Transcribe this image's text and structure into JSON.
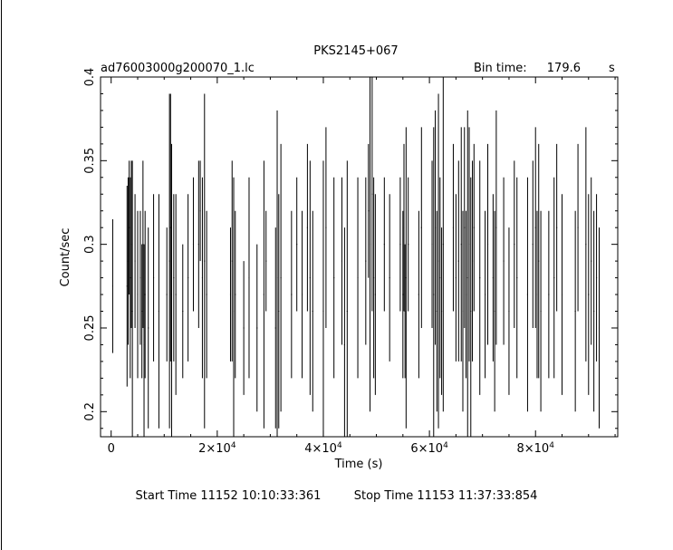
{
  "chart_data": {
    "type": "line",
    "title": "PKS2145+067",
    "subtitle_left": "ad76003000g200070_1.lc",
    "bin_time_label": "Bin time:",
    "bin_time_value": "179.6",
    "bin_time_unit": "s",
    "xlabel": "Time (s)",
    "ylabel": "Count/sec",
    "xlim": [
      -2000,
      95500
    ],
    "ylim": [
      0.185,
      0.4
    ],
    "x_ticks": [
      {
        "value": 0,
        "mantissa": "0",
        "exponent": ""
      },
      {
        "value": 20000,
        "mantissa": "2×10",
        "exponent": "4"
      },
      {
        "value": 40000,
        "mantissa": "4×10",
        "exponent": "4"
      },
      {
        "value": 60000,
        "mantissa": "6×10",
        "exponent": "4"
      },
      {
        "value": 80000,
        "mantissa": "8×10",
        "exponent": "4"
      }
    ],
    "y_ticks": [
      {
        "value": 0.2,
        "label": "0.2"
      },
      {
        "value": 0.25,
        "label": "0.25"
      },
      {
        "value": 0.3,
        "label": "0.3"
      },
      {
        "value": 0.35,
        "label": "0.35"
      },
      {
        "value": 0.4,
        "label": "0.4"
      }
    ],
    "series": [
      {
        "x": [
          300,
          3000,
          3200,
          3400,
          3600,
          3800,
          4000,
          4500,
          5000,
          5500,
          5800,
          6000,
          6200,
          6400,
          7000,
          8000,
          9000,
          10500,
          11000,
          11200,
          11400,
          11800,
          12200,
          13500,
          14500,
          15500,
          16500,
          16800,
          17200,
          17600,
          18000,
          22500,
          22800,
          23100,
          23400,
          25000,
          26000,
          27500,
          28800,
          29200,
          31000,
          31300,
          31600,
          32000,
          34000,
          35000,
          36000,
          37000,
          37500,
          38000,
          40000,
          40500,
          42000,
          43500,
          44000,
          44500,
          46500,
          48000,
          48500,
          48800,
          49200,
          49500,
          49800,
          51500,
          52500,
          54500,
          55000,
          55200,
          55400,
          55600,
          56000,
          58000,
          58500,
          60500,
          60800,
          61100,
          61400,
          61700,
          62000,
          62300,
          62600,
          64500,
          65000,
          65500,
          66000,
          66300,
          66600,
          66900,
          67200,
          67500,
          67800,
          68100,
          68400,
          69500,
          70500,
          71000,
          72000,
          72300,
          72600,
          74000,
          75000,
          76000,
          76500,
          78500,
          79500,
          80000,
          80300,
          80600,
          81000,
          82500,
          83500,
          84000,
          85000,
          87500,
          88000,
          89500,
          90000,
          90500,
          91000,
          91500,
          92000
        ],
        "y": [
          0.275,
          0.275,
          0.29,
          0.31,
          0.28,
          0.3,
          0.26,
          0.29,
          0.27,
          0.28,
          0.26,
          0.3,
          0.24,
          0.27,
          0.25,
          0.28,
          0.26,
          0.27,
          0.29,
          0.31,
          0.27,
          0.28,
          0.27,
          0.26,
          0.28,
          0.3,
          0.3,
          0.32,
          0.28,
          0.29,
          0.27,
          0.27,
          0.29,
          0.26,
          0.27,
          0.25,
          0.28,
          0.25,
          0.27,
          0.29,
          0.25,
          0.28,
          0.26,
          0.28,
          0.27,
          0.3,
          0.27,
          0.31,
          0.28,
          0.26,
          0.26,
          0.31,
          0.28,
          0.29,
          0.24,
          0.26,
          0.28,
          0.29,
          0.32,
          0.3,
          0.33,
          0.28,
          0.27,
          0.3,
          0.28,
          0.3,
          0.27,
          0.31,
          0.26,
          0.28,
          0.3,
          0.27,
          0.31,
          0.3,
          0.27,
          0.31,
          0.26,
          0.29,
          0.28,
          0.26,
          0.3,
          0.31,
          0.28,
          0.29,
          0.3,
          0.26,
          0.31,
          0.27,
          0.28,
          0.3,
          0.26,
          0.29,
          0.31,
          0.28,
          0.27,
          0.3,
          0.28,
          0.26,
          0.31,
          0.29,
          0.26,
          0.3,
          0.28,
          0.27,
          0.3,
          0.31,
          0.27,
          0.29,
          0.26,
          0.27,
          0.28,
          0.31,
          0.27,
          0.26,
          0.31,
          0.3,
          0.27,
          0.29,
          0.26,
          0.28,
          0.25
        ],
        "err": [
          0.04,
          0.06,
          0.05,
          0.04,
          0.06,
          0.05,
          0.09,
          0.04,
          0.05,
          0.04,
          0.04,
          0.05,
          0.06,
          0.05,
          0.06,
          0.05,
          0.07,
          0.04,
          0.1,
          0.08,
          0.09,
          0.05,
          0.06,
          0.04,
          0.05,
          0.04,
          0.05,
          0.03,
          0.06,
          0.1,
          0.05,
          0.04,
          0.06,
          0.08,
          0.05,
          0.04,
          0.06,
          0.05,
          0.08,
          0.03,
          0.06,
          0.1,
          0.07,
          0.08,
          0.05,
          0.04,
          0.05,
          0.05,
          0.07,
          0.06,
          0.09,
          0.06,
          0.06,
          0.05,
          0.07,
          0.09,
          0.06,
          0.05,
          0.04,
          0.1,
          0.07,
          0.06,
          0.06,
          0.04,
          0.05,
          0.04,
          0.05,
          0.05,
          0.04,
          0.09,
          0.04,
          0.05,
          0.06,
          0.05,
          0.1,
          0.07,
          0.06,
          0.1,
          0.06,
          0.05,
          0.1,
          0.05,
          0.05,
          0.06,
          0.07,
          0.06,
          0.06,
          0.05,
          0.1,
          0.07,
          0.08,
          0.06,
          0.05,
          0.07,
          0.05,
          0.06,
          0.05,
          0.06,
          0.07,
          0.05,
          0.05,
          0.05,
          0.06,
          0.07,
          0.05,
          0.06,
          0.05,
          0.07,
          0.06,
          0.05,
          0.06,
          0.05,
          0.06,
          0.06,
          0.05,
          0.07,
          0.06,
          0.05,
          0.06,
          0.05,
          0.06
        ]
      }
    ]
  },
  "footer": {
    "start_label": "Start Time 11152  10:10:33:361",
    "stop_label": "Stop Time 11153  11:37:33:854"
  }
}
